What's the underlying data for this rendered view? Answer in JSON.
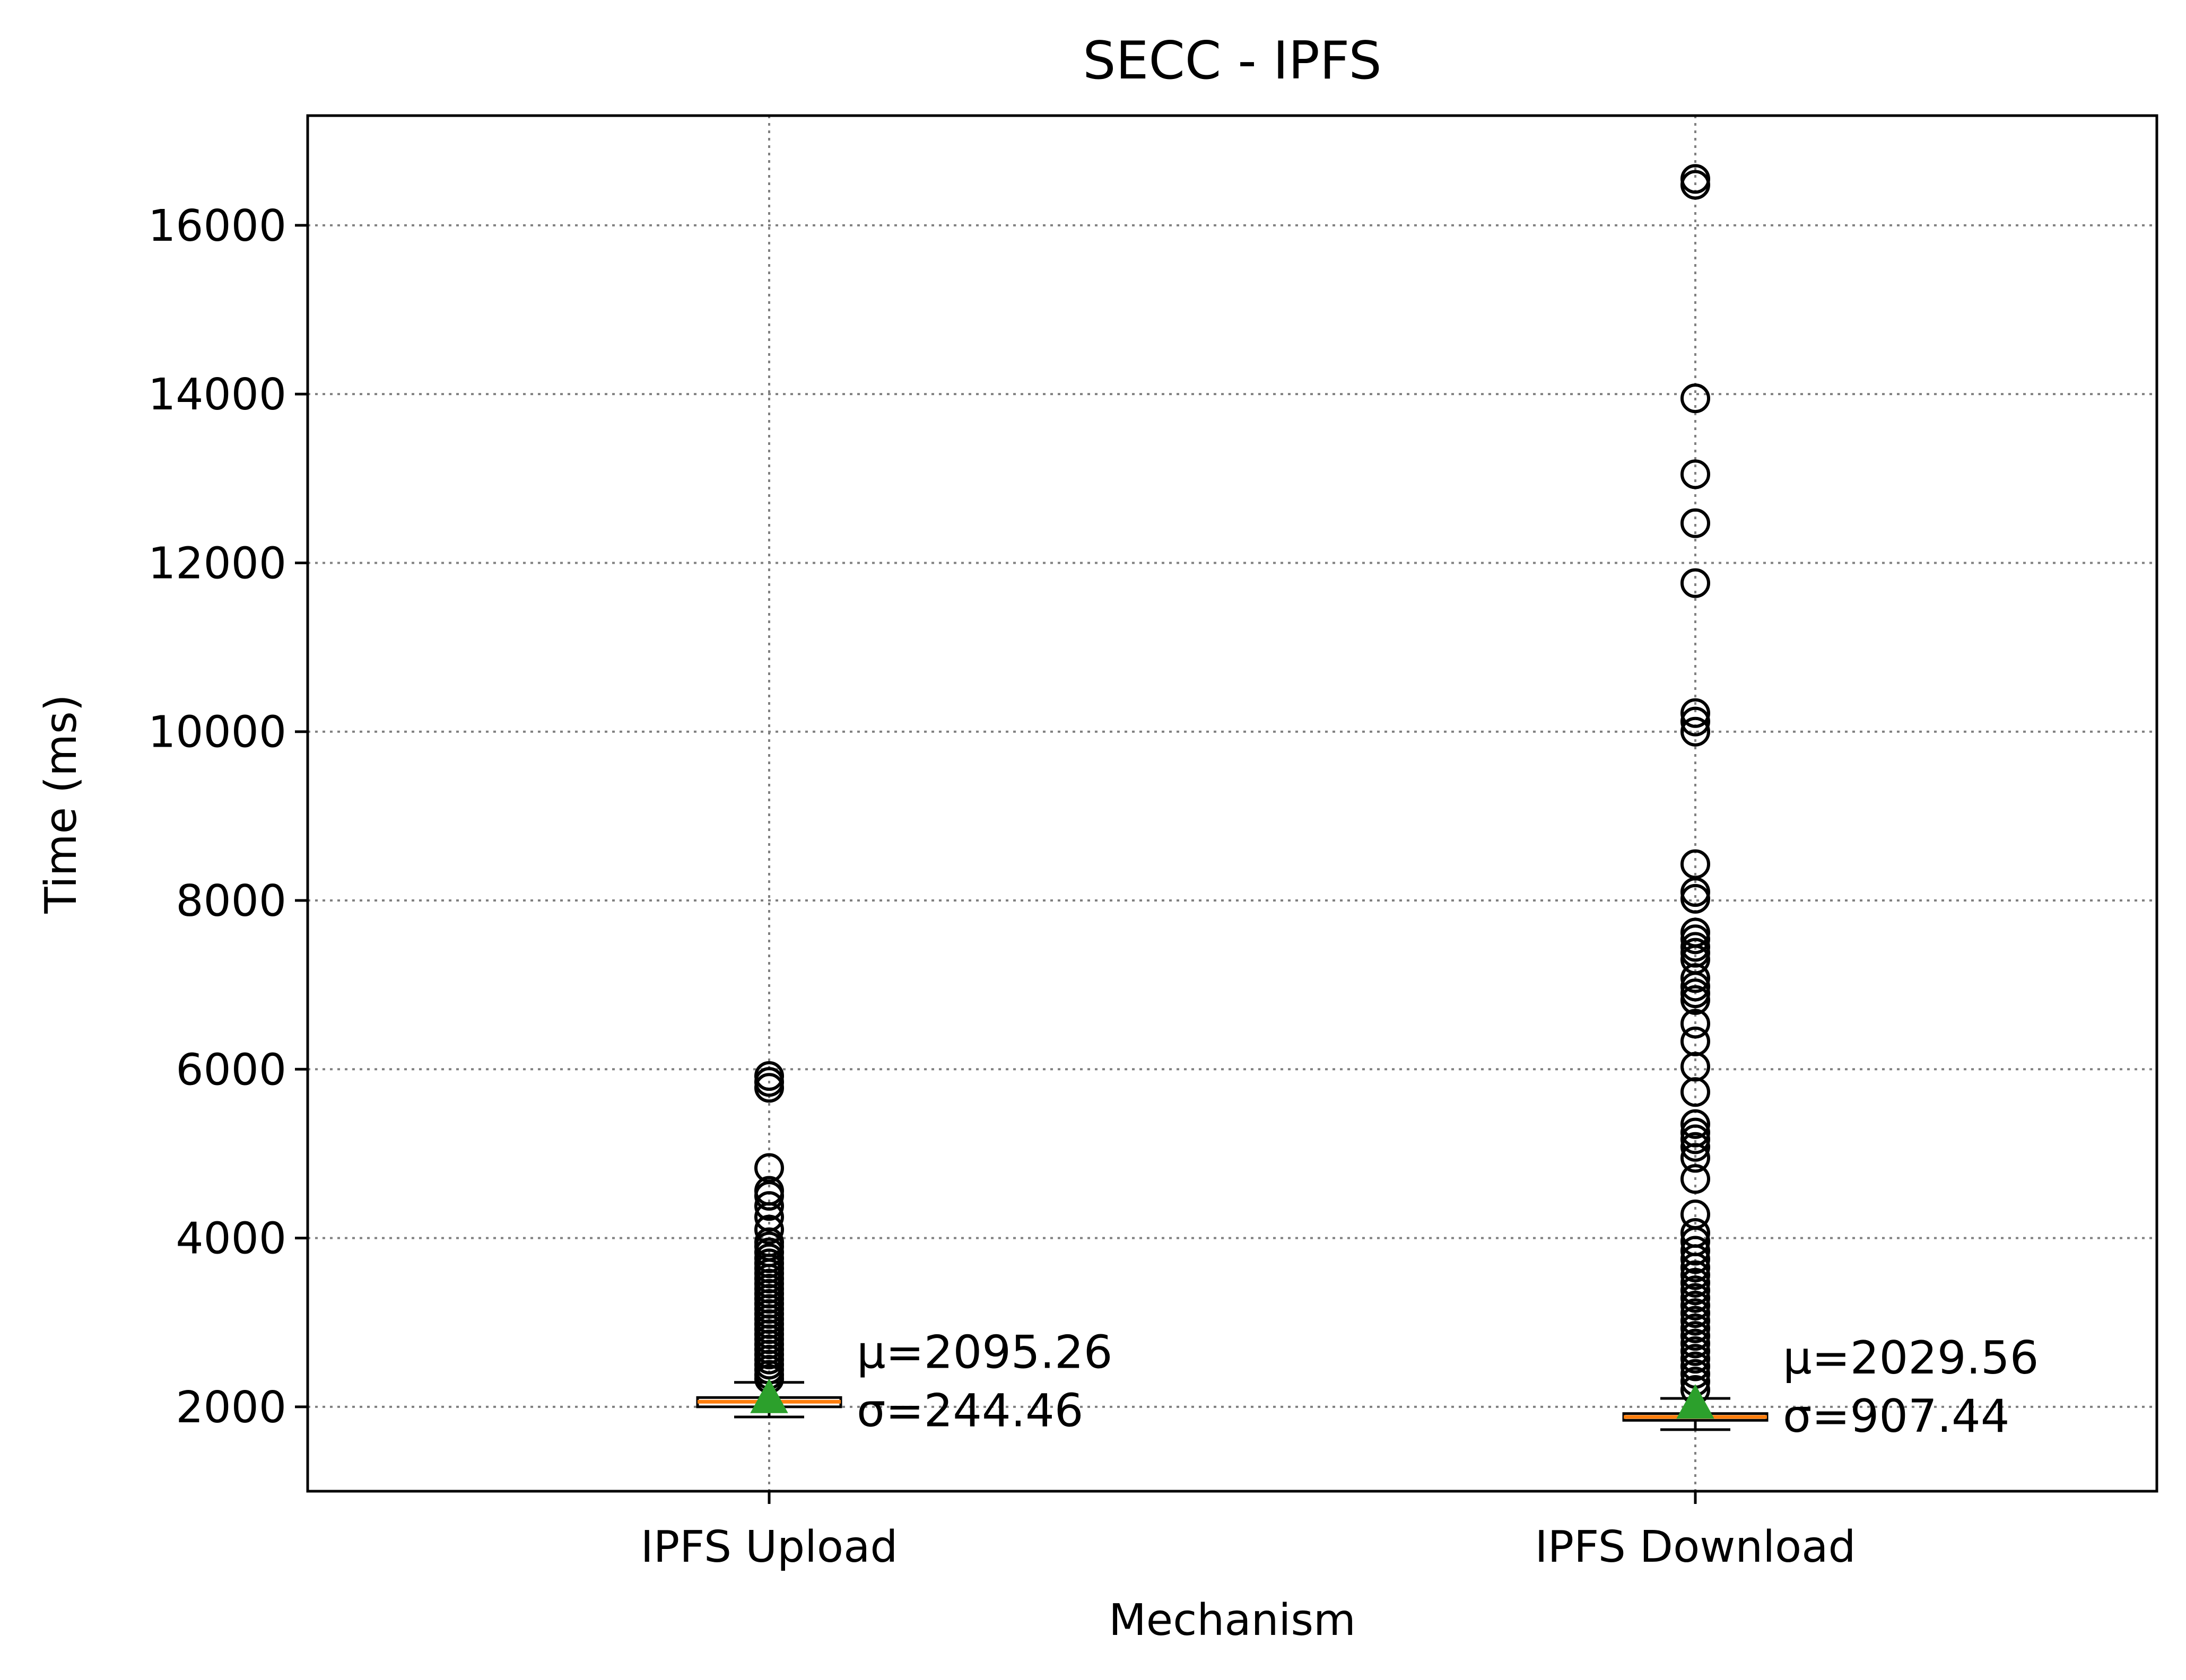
{
  "chart_data": {
    "type": "box",
    "title": "SECC - IPFS",
    "xlabel": "Mechanism",
    "ylabel": "Time (ms)",
    "ylim": [
      1000,
      17300
    ],
    "yticks": [
      "2000",
      "4000",
      "6000",
      "8000",
      "10000",
      "12000",
      "14000",
      "16000"
    ],
    "grid": true,
    "colors": {
      "median": "#ff7f0e",
      "mean_marker": "#2ca02c",
      "box_edge": "#000000",
      "grid": "#808080"
    },
    "categories": [
      "IPFS Upload",
      "IPFS Download"
    ],
    "series": [
      {
        "category": "IPFS Upload",
        "q1": 2000,
        "median": 2060,
        "q3": 2110,
        "whisker_low": 1880,
        "whisker_high": 2290,
        "mean": 2095.26,
        "std": 244.46,
        "annotation": [
          "μ=2095.26",
          "σ=244.46"
        ],
        "outliers": [
          5920,
          5850,
          5780,
          4830,
          4560,
          4500,
          4380,
          4250,
          4100,
          3950,
          3900,
          3830,
          3760,
          3700,
          3640,
          3580,
          3520,
          3460,
          3400,
          3340,
          3280,
          3220,
          3160,
          3100,
          3040,
          2980,
          2920,
          2860,
          2800,
          2740,
          2680,
          2620,
          2560,
          2500,
          2440,
          2380,
          2330
        ]
      },
      {
        "category": "IPFS Download",
        "q1": 1840,
        "median": 1880,
        "q3": 1920,
        "whisker_low": 1730,
        "whisker_high": 2100,
        "mean": 2029.56,
        "std": 907.44,
        "annotation": [
          "μ=2029.56",
          "σ=907.44"
        ],
        "outliers": [
          16550,
          16480,
          13950,
          13050,
          12470,
          11760,
          10220,
          10120,
          10000,
          8430,
          8100,
          8020,
          7620,
          7540,
          7450,
          7380,
          7300,
          7080,
          6980,
          6900,
          6820,
          6540,
          6330,
          6030,
          5730,
          5350,
          5250,
          5170,
          5080,
          4950,
          4700,
          4280,
          4060,
          3960,
          3850,
          3750,
          3650,
          3560,
          3470,
          3380,
          3290,
          3200,
          3110,
          3020,
          2930,
          2840,
          2750,
          2660,
          2570,
          2480,
          2390,
          2300,
          2200
        ]
      }
    ]
  }
}
